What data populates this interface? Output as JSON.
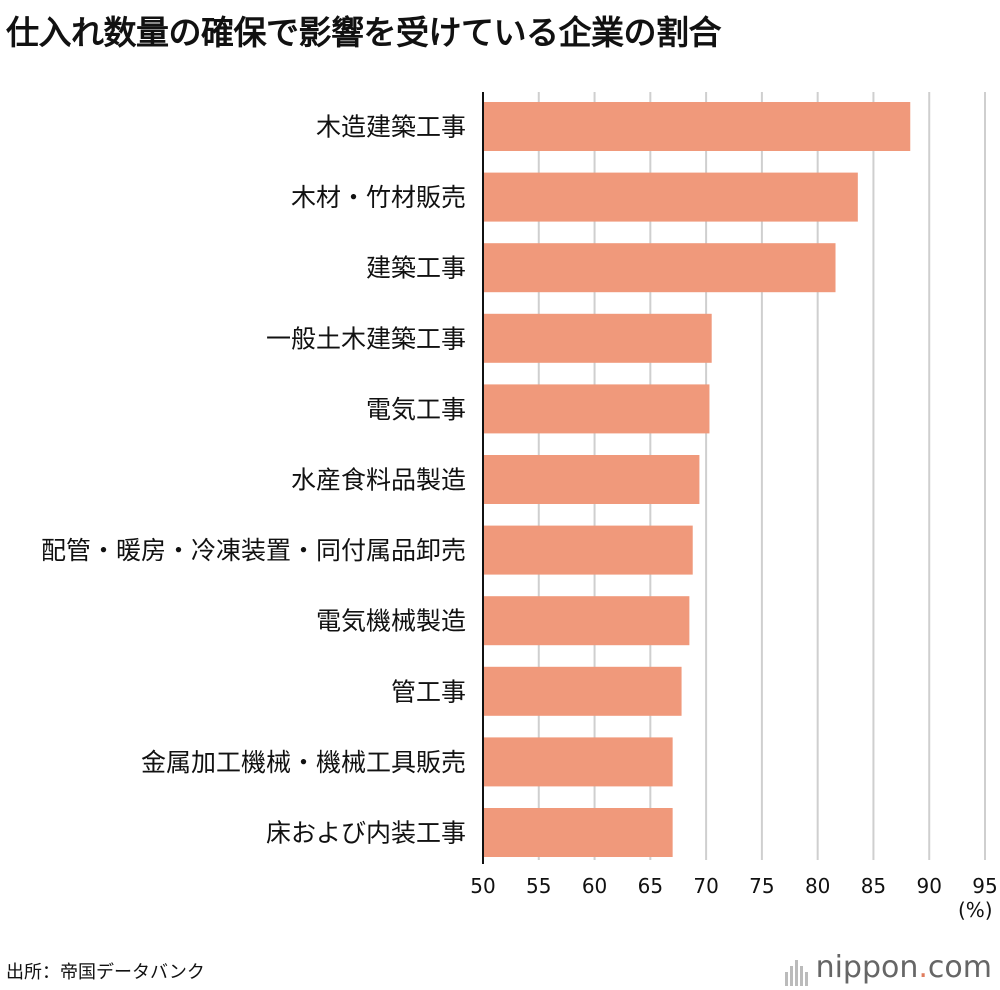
{
  "title": "仕入れ数量の確保で影響を受けている企業の割合",
  "unit_label": "(%)",
  "source": "出所：帝国データバンク",
  "logo": {
    "name": "nippon",
    "dot": ".",
    "suffix": "com"
  },
  "colors": {
    "bar": "#f0997b",
    "grid": "#cfcfcf",
    "axis": "#111111",
    "logo_accent": "#e07d5e"
  },
  "chart_data": {
    "type": "bar",
    "orientation": "horizontal",
    "categories": [
      "木造建築工事",
      "木材・竹材販売",
      "建築工事",
      "一般土木建築工事",
      "電気工事",
      "水産食料品製造",
      "配管・暖房・冷凍装置・同付属品卸売",
      "電気機械製造",
      "管工事",
      "金属加工機械・機械工具販売",
      "床および内装工事"
    ],
    "values": [
      88.3,
      83.6,
      81.6,
      70.5,
      70.3,
      69.4,
      68.8,
      68.5,
      67.8,
      67.0,
      67.0
    ],
    "xlim": [
      50,
      95
    ],
    "xticks": [
      "50",
      "55",
      "60",
      "65",
      "70",
      "75",
      "80",
      "85",
      "90",
      "95"
    ],
    "grid": true
  }
}
